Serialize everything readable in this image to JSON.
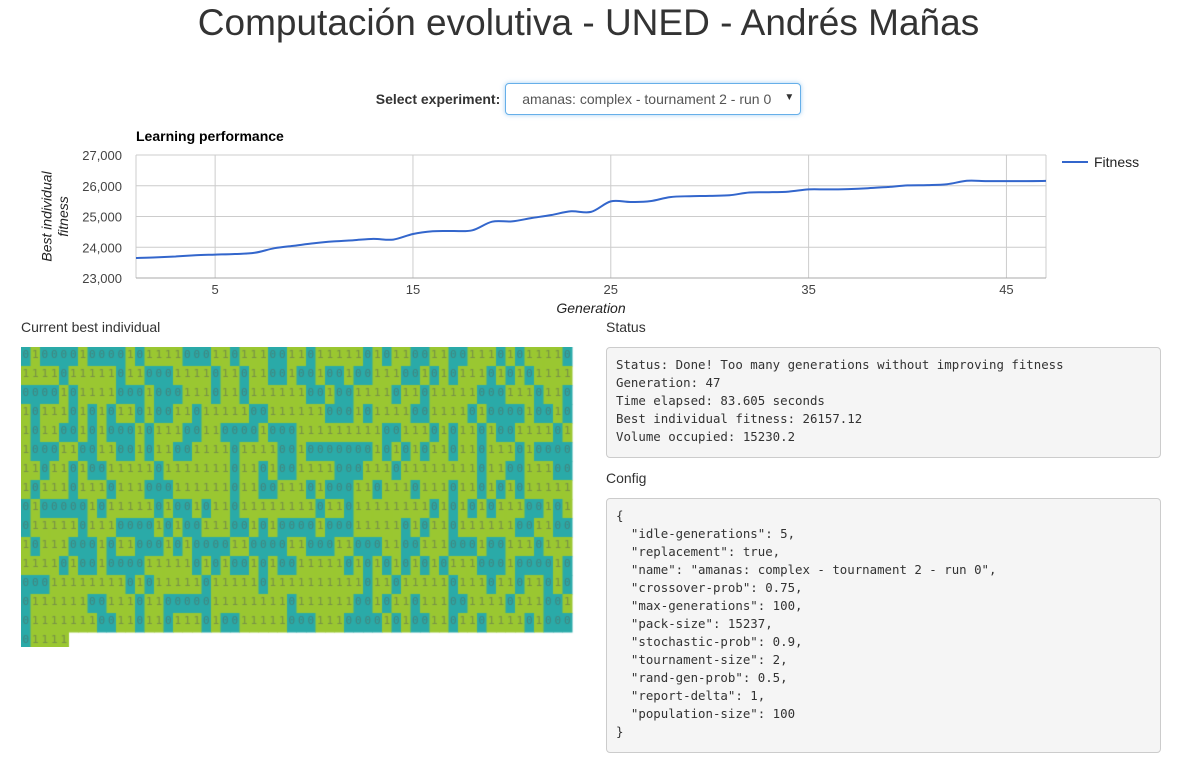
{
  "header": {
    "title": "Computación evolutiva - UNED - Andrés Mañas"
  },
  "experiment": {
    "label": "Select experiment:",
    "selected": "amanas: complex - tournament 2 - run 0"
  },
  "chart_data": {
    "type": "line",
    "title": "Learning performance",
    "xlabel": "Generation",
    "ylabel": "Best individual fitness",
    "xlim": [
      1,
      47
    ],
    "ylim": [
      23000,
      27000
    ],
    "yticks": [
      23000,
      24000,
      25000,
      26000,
      27000
    ],
    "ytick_labels": [
      "23,000",
      "24,000",
      "25,000",
      "26,000",
      "27,000"
    ],
    "xticks": [
      5,
      15,
      25,
      35,
      45
    ],
    "xtick_labels": [
      "5",
      "15",
      "25",
      "35",
      "45"
    ],
    "grid": true,
    "legend": "right",
    "series": [
      {
        "name": "Fitness",
        "color": "#3366cc",
        "x": [
          1,
          2,
          3,
          4,
          5,
          6,
          7,
          8,
          9,
          10,
          11,
          12,
          13,
          14,
          15,
          16,
          17,
          18,
          19,
          20,
          21,
          22,
          23,
          24,
          25,
          26,
          27,
          28,
          29,
          30,
          31,
          32,
          33,
          34,
          35,
          36,
          37,
          38,
          39,
          40,
          41,
          42,
          43,
          44,
          45,
          46,
          47
        ],
        "values": [
          23650,
          23670,
          23700,
          23740,
          23760,
          23780,
          23820,
          23970,
          24050,
          24130,
          24190,
          24230,
          24270,
          24250,
          24430,
          24520,
          24530,
          24550,
          24830,
          24840,
          24950,
          25050,
          25170,
          25150,
          25490,
          25470,
          25500,
          25630,
          25660,
          25670,
          25690,
          25780,
          25790,
          25810,
          25880,
          25880,
          25890,
          25920,
          25960,
          26010,
          26020,
          26050,
          26160,
          26150,
          26150,
          26150,
          26157
        ]
      }
    ]
  },
  "individual": {
    "label": "Current best individual",
    "colors": {
      "one": "#9ac731",
      "zero": "#2aaaa8"
    }
  },
  "status": {
    "label": "Status",
    "lines": [
      "Status: Done! Too many generations without improving fitness",
      "Generation: 47",
      "Time elapsed: 83.605 seconds",
      "Best individual fitness: 26157.12",
      "Volume occupied: 15230.2"
    ]
  },
  "config": {
    "label": "Config",
    "lines": [
      "{",
      "  \"idle-generations\": 5,",
      "  \"replacement\": true,",
      "  \"name\": \"amanas: complex - tournament 2 - run 0\",",
      "  \"crossover-prob\": 0.75,",
      "  \"max-generations\": 100,",
      "  \"pack-size\": 15237,",
      "  \"stochastic-prob\": 0.9,",
      "  \"tournament-size\": 2,",
      "  \"rand-gen-prob\": 0.5,",
      "  \"report-delta\": 1,",
      "  \"population-size\": 100",
      "}"
    ]
  }
}
